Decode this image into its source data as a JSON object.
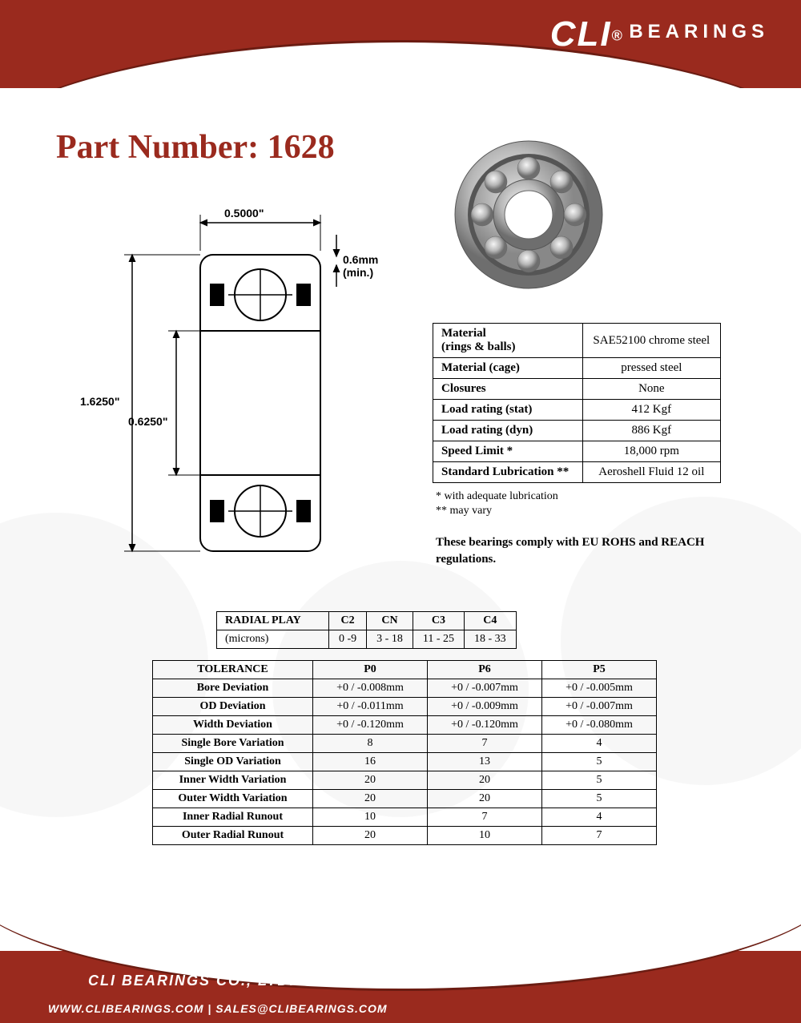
{
  "brand": {
    "cli": "CLI",
    "reg": "®",
    "bearings": "BEARINGS"
  },
  "title": "Part Number: 1628",
  "diagram": {
    "width_dim": "0.5000\"",
    "outer_dim": "1.6250\"",
    "inner_dim": "0.6250\"",
    "chamfer": "0.6mm (min.)"
  },
  "specs": {
    "rows": [
      {
        "label": "Material\n(rings & balls)",
        "value": "SAE52100 chrome steel"
      },
      {
        "label": "Material (cage)",
        "value": "pressed steel"
      },
      {
        "label": "Closures",
        "value": "None"
      },
      {
        "label": "Load rating (stat)",
        "value": "412 Kgf"
      },
      {
        "label": "Load rating (dyn)",
        "value": "886 Kgf"
      },
      {
        "label": "Speed Limit *",
        "value": "18,000 rpm"
      },
      {
        "label": "Standard Lubrication **",
        "value": "Aeroshell Fluid 12 oil"
      }
    ],
    "note1": "*  with adequate lubrication",
    "note2": "** may vary",
    "compliance": "These bearings comply with EU ROHS and REACH  regulations."
  },
  "radial": {
    "header": [
      "RADIAL PLAY",
      "C2",
      "CN",
      "C3",
      "C4"
    ],
    "row_label": "(microns)",
    "values": [
      "0 -9",
      "3 - 18",
      "11 - 25",
      "18 - 33"
    ]
  },
  "tolerance": {
    "header": [
      "TOLERANCE",
      "P0",
      "P6",
      "P5"
    ],
    "rows": [
      [
        "Bore Deviation",
        "+0 / -0.008mm",
        "+0 / -0.007mm",
        "+0 / -0.005mm"
      ],
      [
        "OD Deviation",
        "+0 / -0.011mm",
        "+0 / -0.009mm",
        "+0 / -0.007mm"
      ],
      [
        "Width Deviation",
        "+0 / -0.120mm",
        "+0 / -0.120mm",
        "+0 / -0.080mm"
      ],
      [
        "Single Bore Variation",
        "8",
        "7",
        "4"
      ],
      [
        "Single OD Variation",
        "16",
        "13",
        "5"
      ],
      [
        "Inner Width Variation",
        "20",
        "20",
        "5"
      ],
      [
        "Outer Width Variation",
        "20",
        "20",
        "5"
      ],
      [
        "Inner Radial Runout",
        "10",
        "7",
        "4"
      ],
      [
        "Outer Radial Runout",
        "20",
        "10",
        "7"
      ]
    ]
  },
  "footer": {
    "company": "CLI BEARINGS CO., LTD.",
    "url": "WWW.CLIBEARINGS.COM",
    "sep": "  |  ",
    "email": "SALES@CLIBEARINGS.COM"
  },
  "colors": {
    "brand_red": "#9a2a1e",
    "dark_red": "#6b1c12"
  }
}
